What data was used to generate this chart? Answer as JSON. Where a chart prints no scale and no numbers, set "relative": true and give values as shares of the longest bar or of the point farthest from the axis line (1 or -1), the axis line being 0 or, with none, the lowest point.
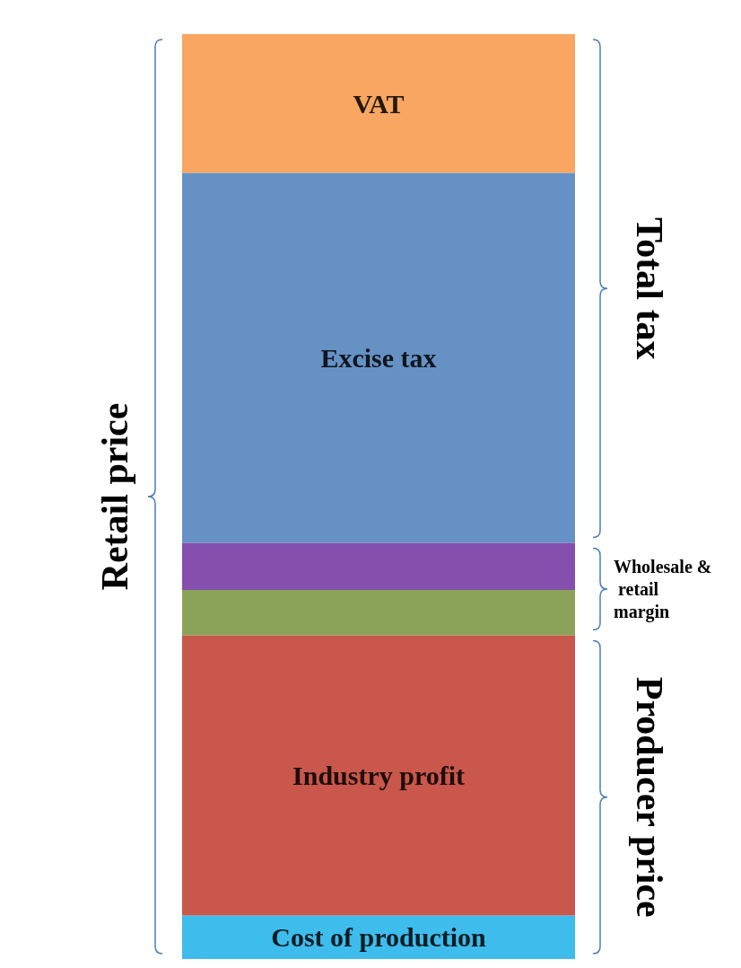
{
  "chart_data": {
    "type": "bar",
    "stacked": true,
    "relative": true,
    "legend": false,
    "categories": [
      null
    ],
    "series": [
      {
        "name": "Cost of production",
        "color": "#1cb0e8",
        "values": [
          0.047
        ]
      },
      {
        "name": "Industry profit",
        "color": "#c0392b",
        "values": [
          0.303
        ]
      },
      {
        "color": "#77933c",
        "values": [
          0.049
        ]
      },
      {
        "color": "#7030a0",
        "values": [
          0.051
        ]
      },
      {
        "name": "Excise tax",
        "color": "#4a7ebb",
        "values": [
          0.4
        ]
      },
      {
        "name": "VAT",
        "color": "#f79646",
        "values": [
          0.15
        ]
      }
    ],
    "annotations": [
      "Retail price",
      "Total tax",
      "Wholesale & retail margin",
      "Producer price"
    ]
  }
}
